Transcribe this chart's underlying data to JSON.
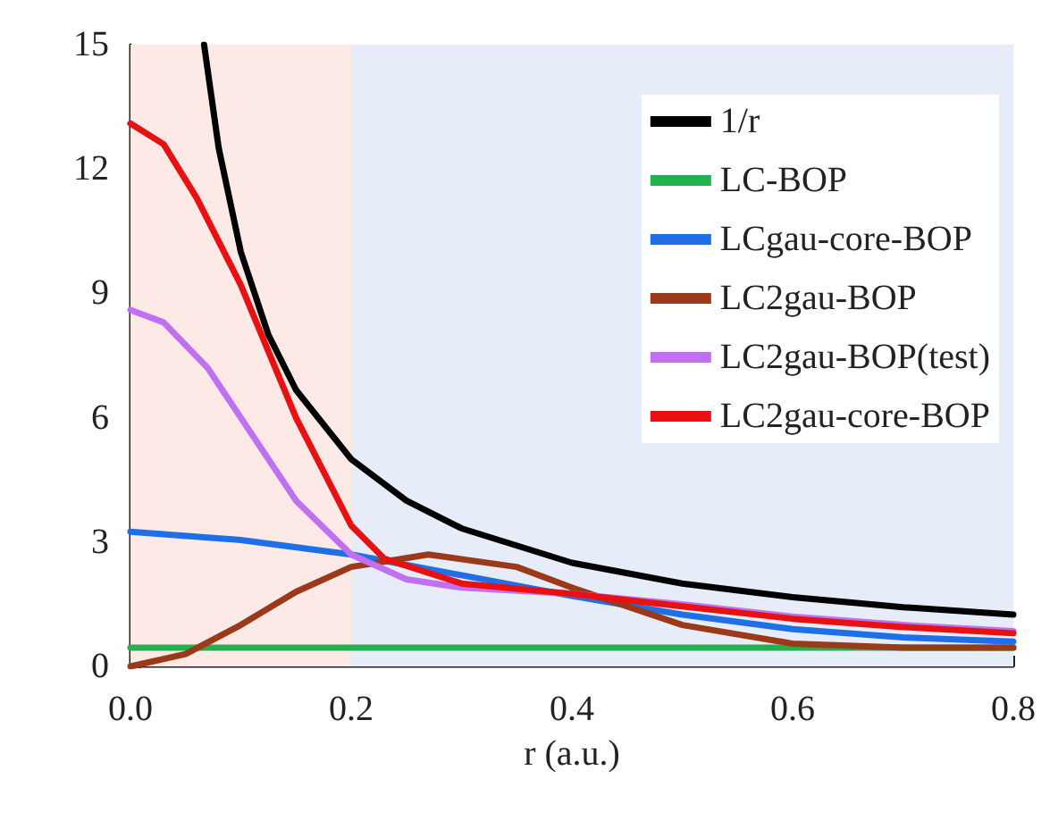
{
  "chart_data": {
    "type": "line",
    "xlabel": "r (a.u.)",
    "xlim": [
      0,
      0.8
    ],
    "xticks": [
      {
        "value": 0,
        "label": "0.0"
      },
      0.2,
      0.4,
      0.6,
      0.8
    ],
    "ylim": [
      0,
      15
    ],
    "yticks": [
      0,
      3,
      6,
      9,
      12,
      15
    ],
    "grid": false,
    "legend": "top right",
    "marker": "none",
    "line_style": "solid",
    "bands": [
      {
        "axis": "x",
        "from": 0,
        "to": 0.2,
        "color": "#fde9e6"
      },
      {
        "axis": "x",
        "from": 0.2,
        "to": 0.8,
        "color": "#e6edf8"
      }
    ],
    "series": [
      {
        "name": "1/r",
        "color": "#000000",
        "x": [
          0.0667,
          0.08,
          0.1,
          0.125,
          0.15,
          0.2,
          0.25,
          0.3,
          0.4,
          0.5,
          0.6,
          0.7,
          0.8
        ],
        "values": [
          15,
          12.5,
          10,
          8,
          6.67,
          5,
          4,
          3.33,
          2.5,
          2,
          1.67,
          1.43,
          1.25
        ]
      },
      {
        "name": "LC-BOP",
        "color": "#22b14c",
        "x": [
          0,
          0.8
        ],
        "values": [
          0.45,
          0.45
        ]
      },
      {
        "name": "LCgau-core-BOP",
        "color": "#1e6fe8",
        "x": [
          0,
          0.1,
          0.2,
          0.3,
          0.4,
          0.5,
          0.6,
          0.7,
          0.8
        ],
        "values": [
          3.25,
          3.05,
          2.7,
          2.2,
          1.7,
          1.25,
          0.9,
          0.7,
          0.6
        ]
      },
      {
        "name": "LC2gau-BOP",
        "color": "#9a3a1a",
        "x": [
          0,
          0.05,
          0.1,
          0.15,
          0.2,
          0.27,
          0.35,
          0.4,
          0.5,
          0.6,
          0.7,
          0.8
        ],
        "values": [
          0,
          0.3,
          1,
          1.8,
          2.4,
          2.7,
          2.4,
          1.9,
          1,
          0.55,
          0.45,
          0.45
        ]
      },
      {
        "name": "LC2gau-BOP(test)",
        "color": "#c070f0",
        "x": [
          0,
          0.03,
          0.07,
          0.1,
          0.15,
          0.2,
          0.25,
          0.3,
          0.4,
          0.5,
          0.6,
          0.7,
          0.8
        ],
        "values": [
          8.6,
          8.3,
          7.2,
          6,
          4,
          2.7,
          2.1,
          1.9,
          1.75,
          1.5,
          1.2,
          1,
          0.85
        ]
      },
      {
        "name": "LC2gau-core-BOP",
        "color": "#e81010",
        "x": [
          0,
          0.03,
          0.06,
          0.1,
          0.15,
          0.2,
          0.23,
          0.3,
          0.4,
          0.5,
          0.6,
          0.7,
          0.8
        ],
        "values": [
          13.1,
          12.6,
          11.3,
          9.2,
          6,
          3.4,
          2.6,
          2,
          1.75,
          1.45,
          1.15,
          0.95,
          0.8
        ]
      }
    ]
  }
}
